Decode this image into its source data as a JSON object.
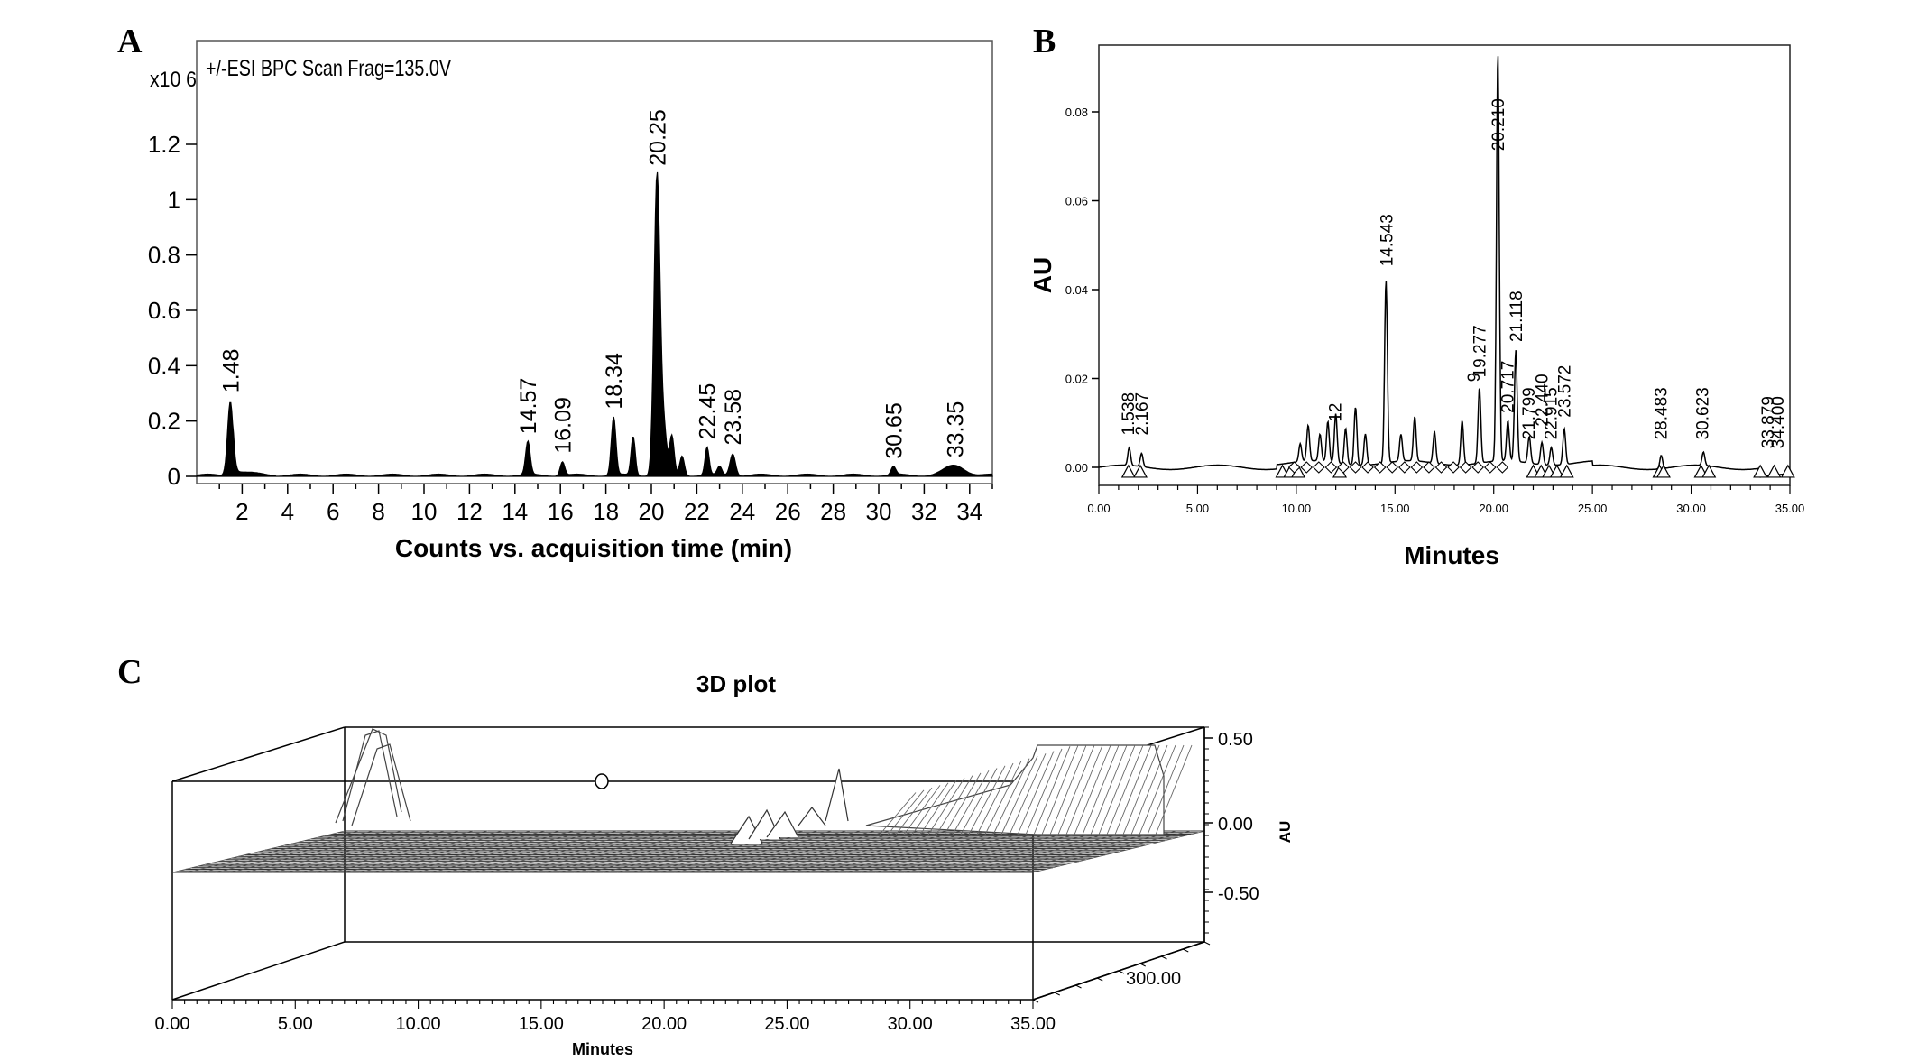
{
  "chart_data": [
    {
      "panel": "A",
      "type": "line",
      "header": "+/-ESI BPC Scan Frag=135.0V",
      "y_multiplier": "x10 6",
      "xlabel": "Counts vs. acquisition time (min)",
      "xlim": [
        0,
        35
      ],
      "ylim": [
        0,
        1.4
      ],
      "x_ticks": [
        2,
        4,
        6,
        8,
        10,
        12,
        14,
        16,
        18,
        20,
        22,
        24,
        26,
        28,
        30,
        32,
        34
      ],
      "y_ticks": [
        0,
        0.2,
        0.4,
        0.6,
        0.8,
        1,
        1.2
      ],
      "y_tick_labels": [
        "0",
        "0.2",
        "0.4",
        "0.6",
        "0.8",
        "1",
        "1.2"
      ],
      "peak_labels": [
        "1.48",
        "14.57",
        "16.09",
        "18.34",
        "20.25",
        "22.45",
        "23.58",
        "30.65",
        "33.35"
      ],
      "peaks": [
        {
          "x": 1.48,
          "h": 0.27,
          "w": 0.12
        },
        {
          "x": 14.57,
          "h": 0.12,
          "w": 0.1
        },
        {
          "x": 16.09,
          "h": 0.05,
          "w": 0.1
        },
        {
          "x": 18.34,
          "h": 0.21,
          "w": 0.1
        },
        {
          "x": 19.2,
          "h": 0.14,
          "w": 0.09
        },
        {
          "x": 20.25,
          "h": 1.09,
          "w": 0.13
        },
        {
          "x": 20.55,
          "h": 0.16,
          "w": 0.12
        },
        {
          "x": 20.9,
          "h": 0.14,
          "w": 0.1
        },
        {
          "x": 21.35,
          "h": 0.07,
          "w": 0.1
        },
        {
          "x": 22.45,
          "h": 0.1,
          "w": 0.09
        },
        {
          "x": 23.0,
          "h": 0.03,
          "w": 0.1
        },
        {
          "x": 23.58,
          "h": 0.08,
          "w": 0.12
        },
        {
          "x": 30.65,
          "h": 0.03,
          "w": 0.1
        },
        {
          "x": 33.35,
          "h": 0.035,
          "w": 0.45
        }
      ]
    },
    {
      "panel": "B",
      "type": "line",
      "xlabel": "Minutes",
      "ylabel": "AU",
      "xlim": [
        0,
        35
      ],
      "ylim": [
        -0.004,
        0.094
      ],
      "x_ticks": [
        0,
        5,
        10,
        15,
        20,
        25,
        30,
        35
      ],
      "x_tick_labels": [
        "0.00",
        "5.00",
        "10.00",
        "15.00",
        "20.00",
        "25.00",
        "30.00",
        "35.00"
      ],
      "y_ticks": [
        0,
        0.02,
        0.04,
        0.06,
        0.08
      ],
      "y_tick_labels": [
        "0.00",
        "0.02",
        "0.04",
        "0.06",
        "0.08"
      ],
      "peak_labels": [
        "1.538",
        "2.167",
        "12",
        "14.543",
        "9",
        "19.277",
        "20.210",
        "20.717",
        "21.118",
        "21.799",
        "22.440",
        "22.915",
        "23.572",
        "28.483",
        "30.623",
        "33.879",
        "34.400"
      ],
      "peaks": [
        {
          "x": 1.538,
          "h": 0.004
        },
        {
          "x": 2.167,
          "h": 0.003
        },
        {
          "x": 10.2,
          "h": 0.004
        },
        {
          "x": 10.6,
          "h": 0.008
        },
        {
          "x": 11.2,
          "h": 0.006
        },
        {
          "x": 11.6,
          "h": 0.009
        },
        {
          "x": 12.0,
          "h": 0.011
        },
        {
          "x": 12.5,
          "h": 0.008
        },
        {
          "x": 13.0,
          "h": 0.013
        },
        {
          "x": 13.5,
          "h": 0.007
        },
        {
          "x": 14.543,
          "h": 0.041
        },
        {
          "x": 15.3,
          "h": 0.006
        },
        {
          "x": 16.0,
          "h": 0.01
        },
        {
          "x": 17.0,
          "h": 0.007
        },
        {
          "x": 18.4,
          "h": 0.01
        },
        {
          "x": 19.277,
          "h": 0.017
        },
        {
          "x": 20.21,
          "h": 0.092
        },
        {
          "x": 20.717,
          "h": 0.009
        },
        {
          "x": 21.118,
          "h": 0.025
        },
        {
          "x": 21.799,
          "h": 0.006
        },
        {
          "x": 22.44,
          "h": 0.005
        },
        {
          "x": 22.915,
          "h": 0.004
        },
        {
          "x": 23.572,
          "h": 0.008
        },
        {
          "x": 28.483,
          "h": 0.003
        },
        {
          "x": 30.623,
          "h": 0.003
        }
      ]
    },
    {
      "panel": "C",
      "type": "area",
      "title": "3D plot",
      "xlabel": "Minutes",
      "zlabel": "AU",
      "depth_tick_label": "300.00",
      "x_ticks": [
        0,
        5,
        10,
        15,
        20,
        25,
        30,
        35
      ],
      "x_tick_labels": [
        "0.00",
        "5.00",
        "10.00",
        "15.00",
        "20.00",
        "25.00",
        "30.00",
        "35.00"
      ],
      "z_ticks": [
        0.5,
        0,
        -0.5
      ],
      "z_tick_labels": [
        "0.50",
        "0.00",
        "-0.50"
      ]
    }
  ],
  "panels": {
    "A": "A",
    "B": "B",
    "C": "C"
  }
}
